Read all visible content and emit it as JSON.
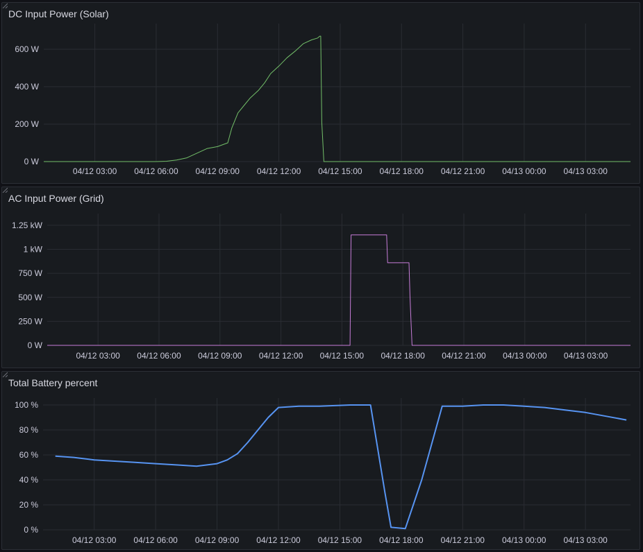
{
  "chart_data": [
    {
      "type": "line",
      "title": "DC Input Power (Solar)",
      "color": "#73bf69",
      "y_unit": "W",
      "ylim": [
        0,
        700
      ],
      "y_ticks": [
        {
          "v": 0,
          "label": "0 W"
        },
        {
          "v": 200,
          "label": "200 W"
        },
        {
          "v": 400,
          "label": "400 W"
        },
        {
          "v": 600,
          "label": "600 W"
        }
      ],
      "x_ticks": [
        "04/12 03:00",
        "04/12 06:00",
        "04/12 09:00",
        "04/12 12:00",
        "04/12 15:00",
        "04/12 18:00",
        "04/12 21:00",
        "04/13 00:00",
        "04/13 03:00"
      ],
      "x_range_hours": [
        0.5,
        29.2
      ],
      "series": [
        {
          "points": [
            [
              0.5,
              0
            ],
            [
              6.0,
              0
            ],
            [
              6.5,
              2
            ],
            [
              7.0,
              8
            ],
            [
              7.5,
              20
            ],
            [
              8.0,
              45
            ],
            [
              8.5,
              70
            ],
            [
              9.0,
              80
            ],
            [
              9.5,
              100
            ],
            [
              9.7,
              180
            ],
            [
              10.0,
              260
            ],
            [
              10.3,
              300
            ],
            [
              10.6,
              340
            ],
            [
              11.0,
              380
            ],
            [
              11.3,
              420
            ],
            [
              11.6,
              470
            ],
            [
              12.0,
              510
            ],
            [
              12.4,
              555
            ],
            [
              12.8,
              590
            ],
            [
              13.2,
              630
            ],
            [
              13.6,
              650
            ],
            [
              13.9,
              660
            ],
            [
              14.0,
              670
            ],
            [
              14.05,
              670
            ],
            [
              14.1,
              210
            ],
            [
              14.2,
              0
            ],
            [
              29.2,
              0
            ]
          ]
        }
      ]
    },
    {
      "type": "line",
      "title": "AC Input Power (Grid)",
      "color": "#c77dd9",
      "y_unit": "W",
      "ylim": [
        0,
        1300
      ],
      "y_ticks": [
        {
          "v": 0,
          "label": "0 W"
        },
        {
          "v": 250,
          "label": "250 W"
        },
        {
          "v": 500,
          "label": "500 W"
        },
        {
          "v": 750,
          "label": "750 W"
        },
        {
          "v": 1000,
          "label": "1 kW"
        },
        {
          "v": 1250,
          "label": "1.25 kW"
        }
      ],
      "x_ticks": [
        "04/12 03:00",
        "04/12 06:00",
        "04/12 09:00",
        "04/12 12:00",
        "04/12 15:00",
        "04/12 18:00",
        "04/12 21:00",
        "04/13 00:00",
        "04/13 03:00"
      ],
      "x_range_hours": [
        0.5,
        29.2
      ],
      "series": [
        {
          "points": [
            [
              0.5,
              0
            ],
            [
              15.4,
              0
            ],
            [
              15.45,
              1150
            ],
            [
              17.2,
              1150
            ],
            [
              17.25,
              860
            ],
            [
              18.3,
              860
            ],
            [
              18.35,
              520
            ],
            [
              18.4,
              250
            ],
            [
              18.45,
              0
            ],
            [
              29.2,
              0
            ]
          ]
        }
      ]
    },
    {
      "type": "line",
      "title": "Total Battery percent",
      "color": "#5794f2",
      "y_unit": "%",
      "ylim": [
        0,
        100
      ],
      "y_ticks": [
        {
          "v": 0,
          "label": "0 %"
        },
        {
          "v": 20,
          "label": "20 %"
        },
        {
          "v": 40,
          "label": "40 %"
        },
        {
          "v": 60,
          "label": "60 %"
        },
        {
          "v": 80,
          "label": "80 %"
        },
        {
          "v": 100,
          "label": "100 %"
        }
      ],
      "x_ticks": [
        "04/12 03:00",
        "04/12 06:00",
        "04/12 09:00",
        "04/12 12:00",
        "04/12 15:00",
        "04/12 18:00",
        "04/12 21:00",
        "04/13 00:00",
        "04/13 03:00"
      ],
      "x_range_hours": [
        0.5,
        29.2
      ],
      "series": [
        {
          "points": [
            [
              1.1,
              59
            ],
            [
              2.0,
              58
            ],
            [
              3.0,
              56
            ],
            [
              4.0,
              55
            ],
            [
              5.0,
              54
            ],
            [
              6.0,
              53
            ],
            [
              7.0,
              52
            ],
            [
              8.0,
              51
            ],
            [
              9.0,
              53
            ],
            [
              9.5,
              56
            ],
            [
              10.0,
              61
            ],
            [
              10.5,
              70
            ],
            [
              11.0,
              80
            ],
            [
              11.5,
              90
            ],
            [
              12.0,
              98
            ],
            [
              13.0,
              99
            ],
            [
              14.0,
              99
            ],
            [
              15.5,
              100
            ],
            [
              16.5,
              100
            ],
            [
              17.2,
              30
            ],
            [
              17.5,
              2
            ],
            [
              18.2,
              1
            ],
            [
              19.0,
              40
            ],
            [
              20.0,
              99
            ],
            [
              21.0,
              99
            ],
            [
              22.0,
              100
            ],
            [
              23.0,
              100
            ],
            [
              24.0,
              99
            ],
            [
              25.0,
              98
            ],
            [
              26.0,
              96
            ],
            [
              27.0,
              94
            ],
            [
              28.0,
              91
            ],
            [
              29.0,
              88
            ]
          ]
        }
      ]
    }
  ]
}
